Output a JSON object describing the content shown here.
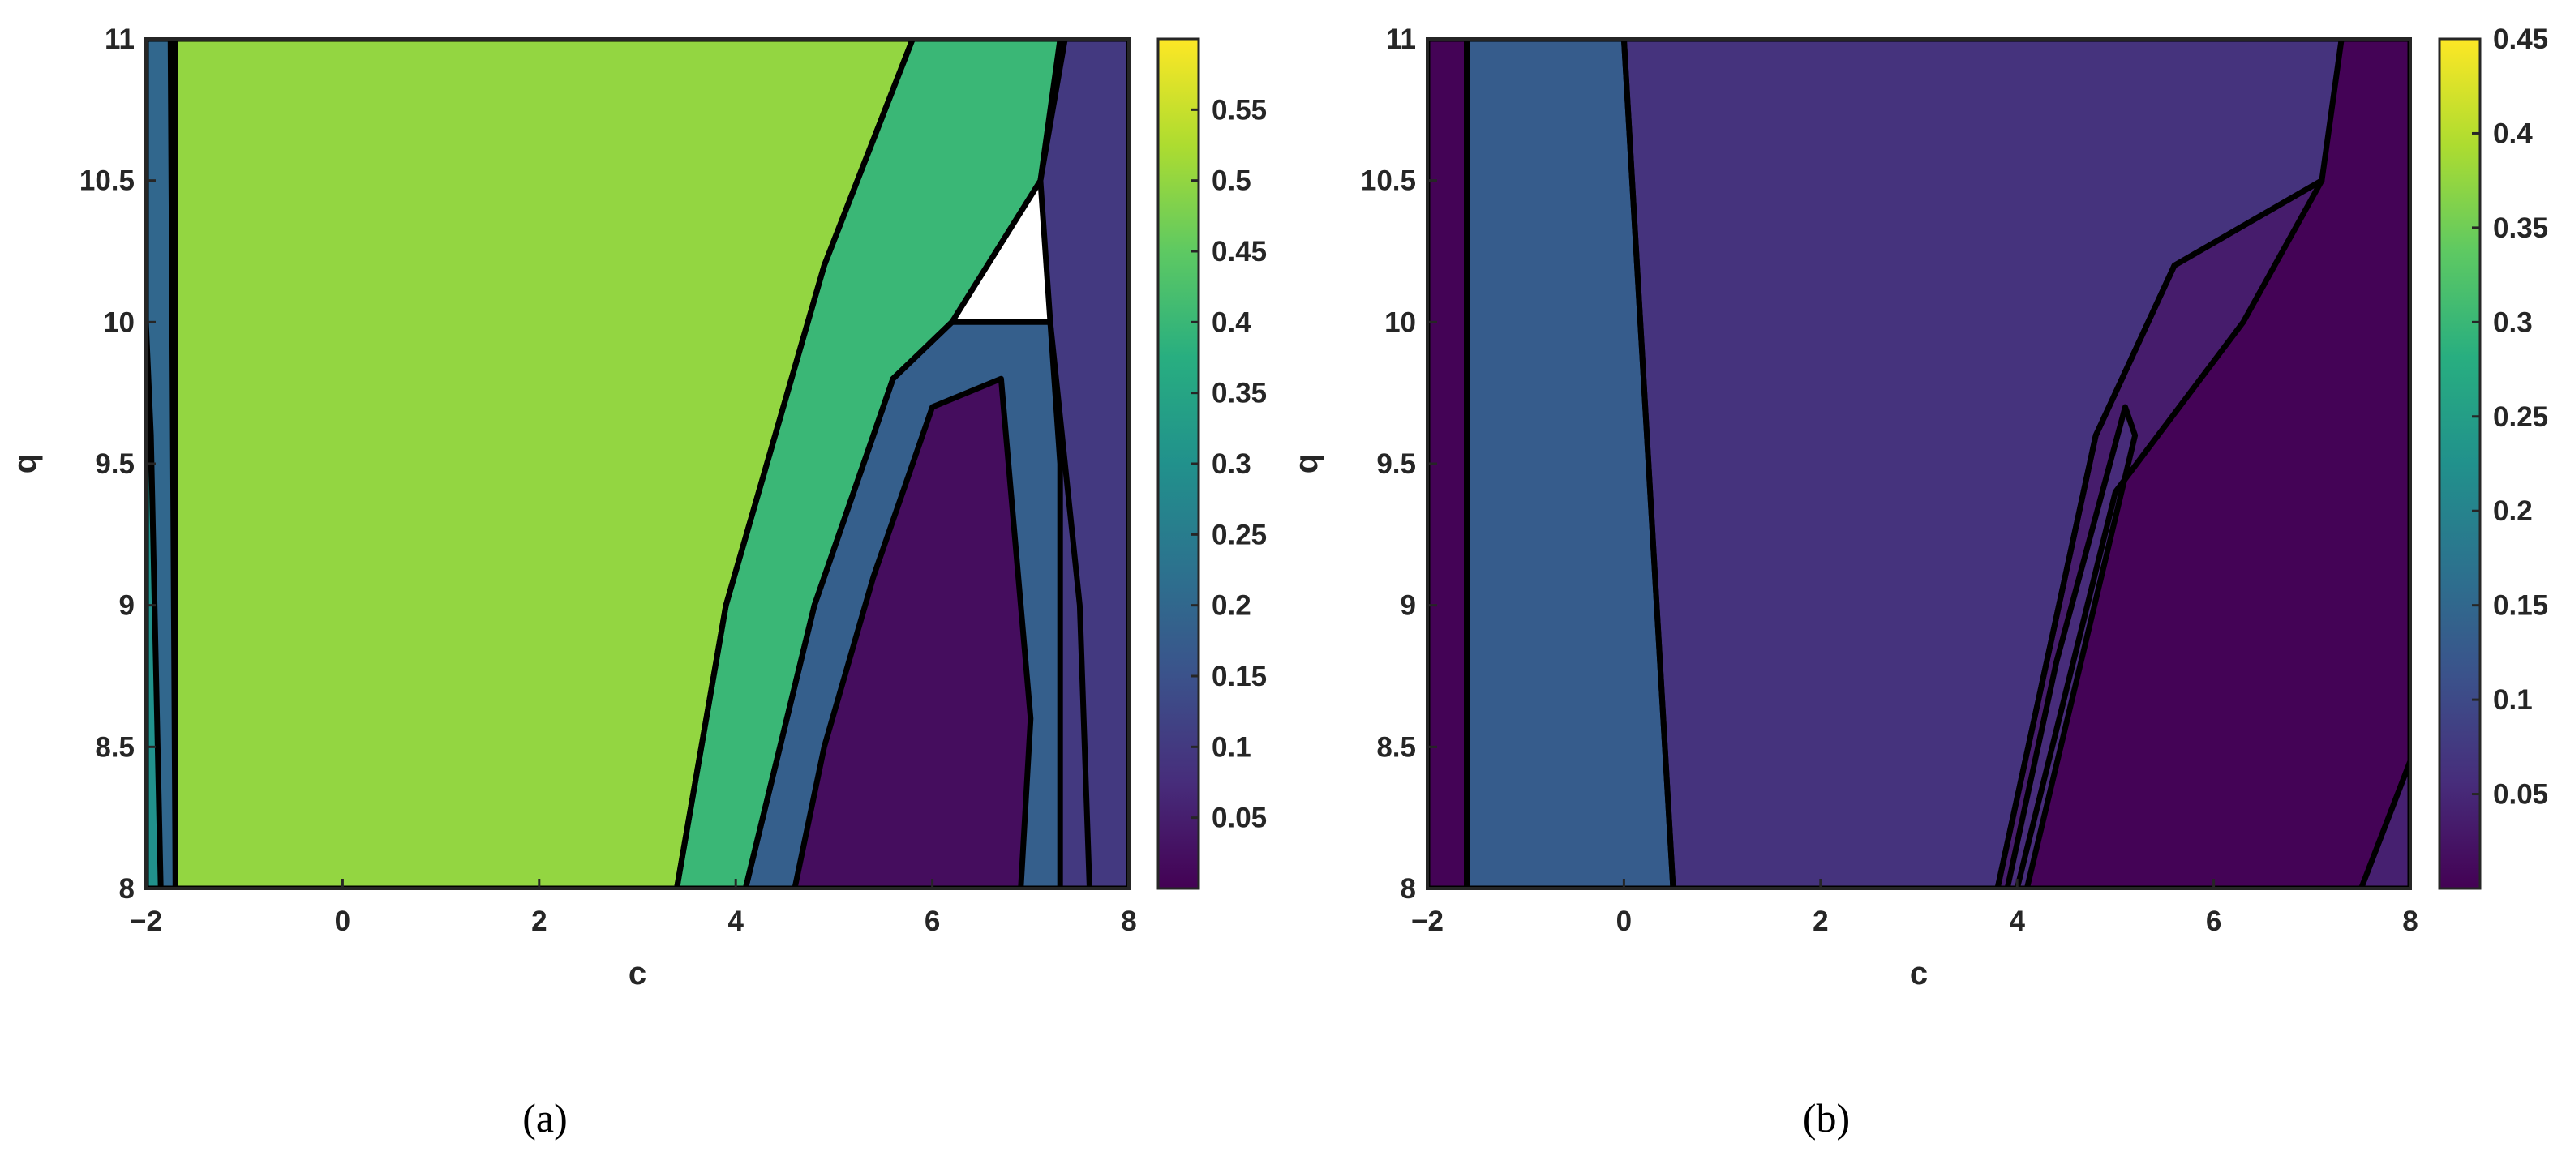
{
  "chart_data": [
    {
      "type": "heatmap",
      "panel_label": "(a)",
      "xlabel": "c",
      "ylabel": "q",
      "xlim": [
        -2,
        8
      ],
      "ylim": [
        8,
        11
      ],
      "xticks": [
        "-2",
        "0",
        "2",
        "4",
        "6",
        "8"
      ],
      "yticks": [
        "8",
        "8.5",
        "9",
        "9.5",
        "10",
        "10.5",
        "11"
      ],
      "colorbar": {
        "min": 0.0,
        "max": 0.6,
        "ticks": [
          "0.05",
          "0.1",
          "0.15",
          "0.2",
          "0.25",
          "0.3",
          "0.35",
          "0.4",
          "0.45",
          "0.5",
          "0.55"
        ]
      },
      "regions": [
        {
          "level": 0.5,
          "polygon": [
            [
              -1.7,
              8
            ],
            [
              3.4,
              8
            ],
            [
              3.9,
              9.0
            ],
            [
              4.9,
              10.2
            ],
            [
              5.8,
              11
            ],
            [
              -1.7,
              11
            ]
          ]
        },
        {
          "level": 0.4,
          "polygon": [
            [
              3.4,
              8
            ],
            [
              4.1,
              8
            ],
            [
              4.8,
              9.0
            ],
            [
              5.6,
              9.8
            ],
            [
              6.2,
              10.0
            ],
            [
              7.1,
              10.5
            ],
            [
              7.3,
              11
            ],
            [
              5.8,
              11
            ],
            [
              4.9,
              10.2
            ],
            [
              3.9,
              9.0
            ]
          ]
        },
        {
          "level": 0.18,
          "polygon": [
            [
              4.1,
              8
            ],
            [
              7.6,
              8
            ],
            [
              7.5,
              9.0
            ],
            [
              7.2,
              10.0
            ],
            [
              6.2,
              10.0
            ],
            [
              5.6,
              9.8
            ],
            [
              4.8,
              9.0
            ]
          ]
        },
        {
          "level": 0.02,
          "polygon": [
            [
              4.6,
              8
            ],
            [
              6.9,
              8
            ],
            [
              7.0,
              8.6
            ],
            [
              6.7,
              9.8
            ],
            [
              6.0,
              9.7
            ],
            [
              5.4,
              9.1
            ],
            [
              4.9,
              8.5
            ]
          ]
        },
        {
          "level": 0.1,
          "polygon": [
            [
              7.3,
              8
            ],
            [
              8,
              8
            ],
            [
              8,
              11
            ],
            [
              7.35,
              11
            ],
            [
              7.1,
              10.5
            ],
            [
              7.3,
              9.5
            ]
          ]
        },
        {
          "level": 0.2,
          "polygon": [
            [
              -2,
              8
            ],
            [
              -1.7,
              8
            ],
            [
              -1.75,
              11
            ],
            [
              -2,
              11
            ]
          ]
        },
        {
          "level": 0.3,
          "polygon": [
            [
              -2,
              8
            ],
            [
              -1.85,
              8
            ],
            [
              -1.95,
              9.6
            ],
            [
              -2,
              10
            ]
          ]
        }
      ]
    },
    {
      "type": "heatmap",
      "panel_label": "(b)",
      "xlabel": "c",
      "ylabel": "q",
      "xlim": [
        -2,
        8
      ],
      "ylim": [
        8,
        11
      ],
      "xticks": [
        "-2",
        "0",
        "2",
        "4",
        "6",
        "8"
      ],
      "yticks": [
        "8",
        "8.5",
        "9",
        "9.5",
        "10",
        "10.5",
        "11"
      ],
      "colorbar": {
        "min": 0.0,
        "max": 0.45,
        "ticks": [
          "0.05",
          "0.1",
          "0.15",
          "0.2",
          "0.25",
          "0.3",
          "0.35",
          "0.4",
          "0.45"
        ]
      },
      "regions": [
        {
          "level": 0.003,
          "polygon": [
            [
              -2,
              8
            ],
            [
              8,
              8
            ],
            [
              8,
              11
            ],
            [
              -2,
              11
            ]
          ]
        },
        {
          "level": 0.13,
          "polygon": [
            [
              -1.6,
              8
            ],
            [
              0.5,
              8
            ],
            [
              0.0,
              11
            ],
            [
              -1.6,
              11
            ]
          ]
        },
        {
          "level": 0.065,
          "polygon": [
            [
              0.5,
              8
            ],
            [
              3.8,
              8
            ],
            [
              4.8,
              9.6
            ],
            [
              5.6,
              10.2
            ],
            [
              7.1,
              10.5
            ],
            [
              7.3,
              11
            ],
            [
              0.0,
              11
            ]
          ]
        },
        {
          "level": 0.035,
          "polygon": [
            [
              3.8,
              8
            ],
            [
              4.0,
              8
            ],
            [
              5.0,
              9.4
            ],
            [
              6.3,
              10.0
            ],
            [
              7.1,
              10.5
            ],
            [
              5.6,
              10.2
            ],
            [
              4.8,
              9.6
            ]
          ]
        },
        {
          "level": 0.055,
          "polygon": [
            [
              3.9,
              8
            ],
            [
              4.1,
              8
            ],
            [
              5.2,
              9.6
            ],
            [
              5.1,
              9.7
            ],
            [
              4.4,
              8.8
            ]
          ]
        },
        {
          "level": 0.04,
          "polygon": [
            [
              7.5,
              8
            ],
            [
              8,
              8
            ],
            [
              8,
              8.45
            ]
          ]
        }
      ]
    }
  ]
}
